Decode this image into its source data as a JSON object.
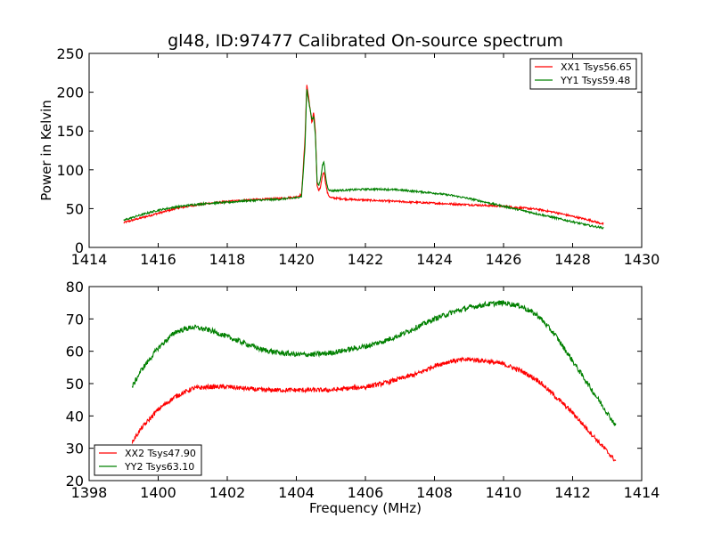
{
  "chart_data": [
    {
      "type": "line",
      "title": "gl48, ID:97477 Calibrated On-source spectrum",
      "xlabel": "",
      "ylabel": "Power in Kelvin",
      "xlim": [
        1414,
        1430
      ],
      "ylim": [
        0,
        250
      ],
      "xticks": [
        1414,
        1416,
        1418,
        1420,
        1422,
        1424,
        1426,
        1428,
        1430
      ],
      "yticks": [
        0,
        50,
        100,
        150,
        200,
        250
      ],
      "legend_position": "top-right",
      "grid": false,
      "series": [
        {
          "name": "XX1 Tsys56.65",
          "color": "#ff0000",
          "noise": 1.2,
          "x": [
            1415.0,
            1415.5,
            1416.0,
            1416.5,
            1417.0,
            1417.5,
            1418.0,
            1418.5,
            1419.0,
            1419.5,
            1420.0,
            1420.15,
            1420.25,
            1420.3,
            1420.35,
            1420.45,
            1420.5,
            1420.55,
            1420.6,
            1420.65,
            1420.7,
            1420.75,
            1420.8,
            1420.85,
            1420.9,
            1420.95,
            1421.0,
            1421.5,
            1422.0,
            1422.5,
            1423.0,
            1423.5,
            1424.0,
            1424.5,
            1425.0,
            1425.5,
            1426.0,
            1426.5,
            1427.0,
            1427.5,
            1428.0,
            1428.5,
            1428.9
          ],
          "y": [
            32,
            38,
            44,
            50,
            54,
            57,
            59,
            61,
            62,
            63,
            65,
            68,
            140,
            210,
            195,
            160,
            175,
            150,
            80,
            72,
            78,
            92,
            98,
            82,
            70,
            66,
            64,
            62,
            61,
            60,
            59,
            58,
            57,
            56,
            55,
            54,
            53,
            51,
            49,
            45,
            40,
            35,
            30
          ]
        },
        {
          "name": "YY1 Tsys59.48",
          "color": "#008000",
          "noise": 1.2,
          "x": [
            1415.0,
            1415.5,
            1416.0,
            1416.5,
            1417.0,
            1417.5,
            1418.0,
            1418.5,
            1419.0,
            1419.5,
            1420.0,
            1420.15,
            1420.25,
            1420.3,
            1420.35,
            1420.45,
            1420.5,
            1420.55,
            1420.6,
            1420.65,
            1420.7,
            1420.75,
            1420.8,
            1420.85,
            1420.9,
            1420.95,
            1421.0,
            1421.5,
            1422.0,
            1422.5,
            1423.0,
            1423.5,
            1424.0,
            1424.5,
            1425.0,
            1425.5,
            1426.0,
            1426.5,
            1427.0,
            1427.5,
            1428.0,
            1428.5,
            1428.9
          ],
          "y": [
            35,
            42,
            48,
            52,
            55,
            57,
            58,
            60,
            61,
            62,
            64,
            66,
            130,
            205,
            190,
            165,
            168,
            145,
            85,
            80,
            88,
            105,
            110,
            90,
            78,
            74,
            73,
            74,
            75,
            75,
            74,
            72,
            70,
            67,
            63,
            58,
            53,
            48,
            43,
            38,
            33,
            28,
            25
          ]
        }
      ]
    },
    {
      "type": "line",
      "title": "",
      "xlabel": "Frequency (MHz)",
      "ylabel": "",
      "xlim": [
        1398,
        1414
      ],
      "ylim": [
        20,
        80
      ],
      "xticks": [
        1398,
        1400,
        1402,
        1404,
        1406,
        1408,
        1410,
        1412,
        1414
      ],
      "yticks": [
        20,
        30,
        40,
        50,
        60,
        70,
        80
      ],
      "legend_position": "bottom-left",
      "grid": false,
      "series": [
        {
          "name": "XX2 Tsys47.90",
          "color": "#ff0000",
          "noise": 0.7,
          "x": [
            1399.25,
            1399.5,
            1400.0,
            1400.5,
            1401.0,
            1401.5,
            1402.0,
            1402.5,
            1403.0,
            1403.5,
            1404.0,
            1404.5,
            1405.0,
            1405.5,
            1406.0,
            1406.5,
            1407.0,
            1407.5,
            1408.0,
            1408.5,
            1409.0,
            1409.5,
            1410.0,
            1410.5,
            1411.0,
            1411.5,
            1412.0,
            1412.5,
            1413.0,
            1413.25
          ],
          "y": [
            32,
            36,
            42,
            46,
            48.5,
            49,
            49,
            48.5,
            48,
            48,
            48,
            48,
            48,
            48.5,
            49,
            50,
            51.5,
            53,
            55.5,
            57,
            57.5,
            57,
            56,
            54,
            51,
            46,
            41,
            35,
            29,
            26
          ]
        },
        {
          "name": "YY2 Tsys63.10",
          "color": "#008000",
          "noise": 0.8,
          "x": [
            1399.25,
            1399.5,
            1400.0,
            1400.5,
            1401.0,
            1401.5,
            1402.0,
            1402.5,
            1403.0,
            1403.5,
            1404.0,
            1404.5,
            1405.0,
            1405.5,
            1406.0,
            1406.5,
            1407.0,
            1407.5,
            1408.0,
            1408.5,
            1409.0,
            1409.5,
            1410.0,
            1410.5,
            1411.0,
            1411.5,
            1412.0,
            1412.5,
            1413.0,
            1413.25
          ],
          "y": [
            49,
            54,
            61,
            66,
            67.5,
            66.5,
            64.5,
            62.5,
            60.5,
            59.5,
            59,
            59,
            59.5,
            60.5,
            61.5,
            63,
            65,
            67.5,
            70,
            72,
            73.5,
            74.5,
            75,
            74,
            71,
            65,
            57,
            49,
            41,
            37
          ]
        }
      ]
    }
  ]
}
